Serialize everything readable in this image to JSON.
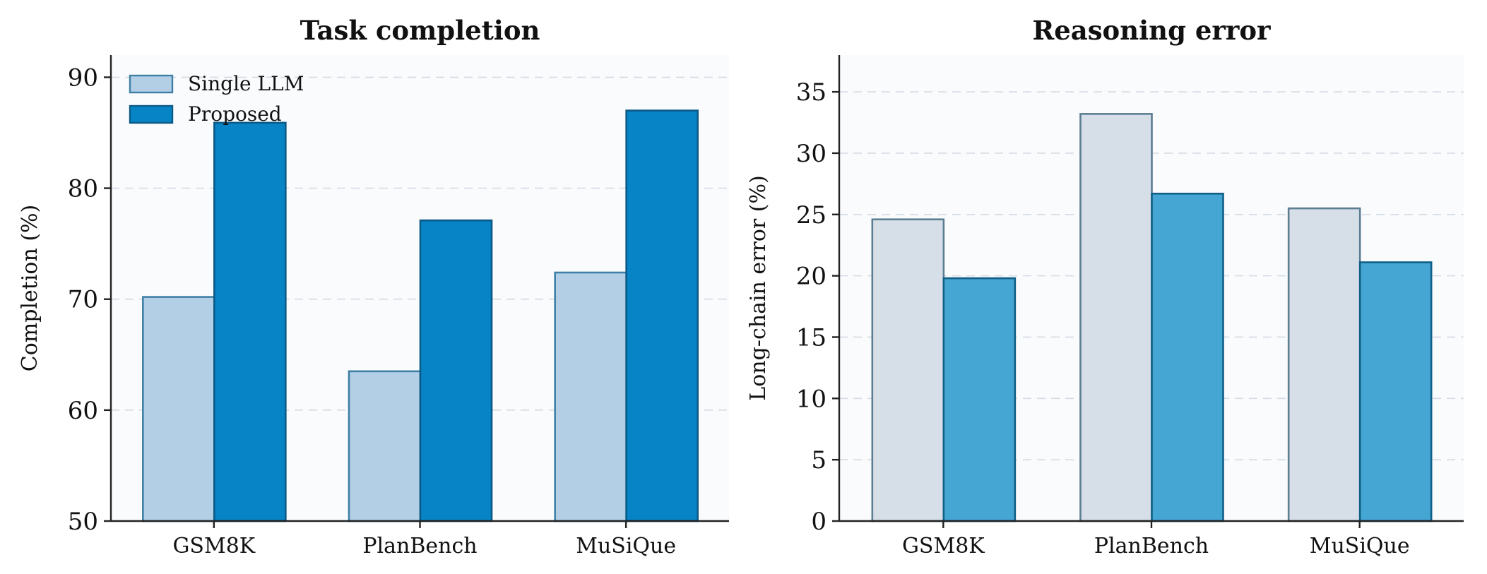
{
  "chart_data": [
    {
      "type": "bar",
      "title": "Task completion",
      "xlabel": "",
      "ylabel": "Completion (%)",
      "ylim": [
        50,
        92
      ],
      "yticks": [
        50,
        60,
        70,
        80,
        90
      ],
      "grid": true,
      "legend": "top-left",
      "categories": [
        "GSM8K",
        "PlanBench",
        "MuSiQue"
      ],
      "series": [
        {
          "name": "Single LLM",
          "values": [
            70.2,
            63.5,
            72.4
          ],
          "color": "#b3cfe6",
          "edge": "#3f7fa6"
        },
        {
          "name": "Proposed",
          "values": [
            85.9,
            77.1,
            87.0
          ],
          "color": "#0784c6",
          "edge": "#0b5a86"
        }
      ]
    },
    {
      "type": "bar",
      "title": "Reasoning error",
      "xlabel": "",
      "ylabel": "Long-chain error (%)",
      "ylim": [
        0,
        38
      ],
      "yticks": [
        0,
        5,
        10,
        15,
        20,
        25,
        30,
        35
      ],
      "grid": true,
      "legend": "none",
      "categories": [
        "GSM8K",
        "PlanBench",
        "MuSiQue"
      ],
      "series": [
        {
          "values": [
            24.6,
            33.2,
            25.5
          ],
          "color": "#d6dfe8",
          "edge": "#5d7d93"
        },
        {
          "values": [
            19.8,
            26.7,
            21.1
          ],
          "color": "#45a6d3",
          "edge": "#0f5f86"
        }
      ]
    }
  ]
}
